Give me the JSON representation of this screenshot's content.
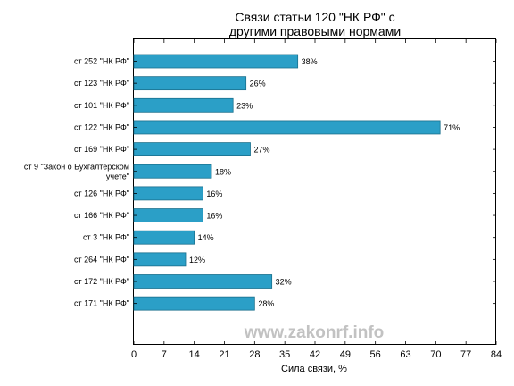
{
  "chart_data": {
    "type": "bar",
    "orientation": "horizontal",
    "title_lines": [
      "Связи статьи 120 \"НК РФ\" с",
      "другими правовыми нормами"
    ],
    "xlabel": "Сила связи, %",
    "ylabel": "",
    "xlim": [
      0,
      84
    ],
    "xticks": [
      0,
      7,
      14,
      21,
      28,
      35,
      42,
      49,
      56,
      63,
      70,
      77,
      84
    ],
    "grid": false,
    "value_suffix": "%",
    "bar_color": "#2b9fc7",
    "bar_edge_color": "#1a6f8c",
    "categories": [
      [
        "ст 252 \"НК РФ\""
      ],
      [
        "ст 123 \"НК РФ\""
      ],
      [
        "ст 101 \"НК РФ\""
      ],
      [
        "ст 122 \"НК РФ\""
      ],
      [
        "ст 169 \"НК РФ\""
      ],
      [
        "ст 9 \"Закон о Бухгалтерском",
        "учете\""
      ],
      [
        "ст 126 \"НК РФ\""
      ],
      [
        "ст 166 \"НК РФ\""
      ],
      [
        "ст 3 \"НК РФ\""
      ],
      [
        "ст 264 \"НК РФ\""
      ],
      [
        "ст 172 \"НК РФ\""
      ],
      [
        "ст 171 \"НК РФ\""
      ]
    ],
    "values": [
      38,
      26,
      23,
      71,
      27,
      18,
      16,
      16,
      14,
      12,
      32,
      28
    ]
  },
  "watermark": "www.zakonrf.info"
}
